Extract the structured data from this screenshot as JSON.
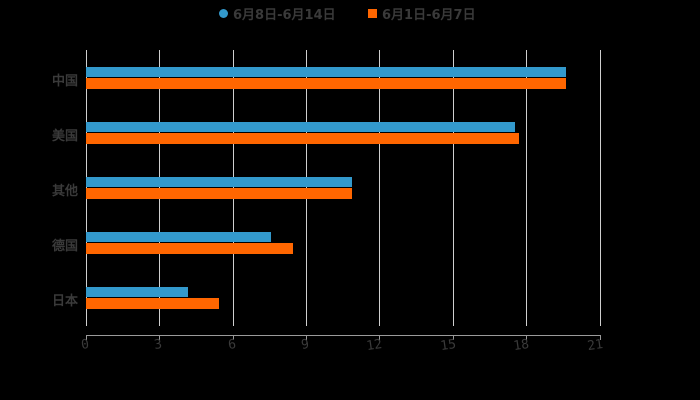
{
  "chart_data": {
    "type": "bar",
    "orientation": "horizontal",
    "title": "",
    "xlabel": "",
    "ylabel": "",
    "categories": [
      "中国",
      "美国",
      "其他",
      "德国",
      "日本"
    ],
    "series": [
      {
        "name": "6月8日-6月14日",
        "color": "#3399cc",
        "values": [
          19.65,
          17.56,
          10.89,
          7.57,
          4.18
        ]
      },
      {
        "name": "6月1日-6月7日",
        "color": "#ff6600",
        "values": [
          19.65,
          17.72,
          10.89,
          8.47,
          5.44
        ]
      }
    ],
    "xlim": [
      0,
      21
    ],
    "xticks": [
      "0",
      "3",
      "6",
      "9",
      "12",
      "15",
      "18",
      "21"
    ],
    "grid": true,
    "legend_position": "top"
  },
  "legend": {
    "items": [
      {
        "label": "6月8日-6月14日",
        "color": "#3399cc",
        "shape": "circle"
      },
      {
        "label": "6月1日-6月7日",
        "color": "#ff6600",
        "shape": "square"
      }
    ]
  }
}
